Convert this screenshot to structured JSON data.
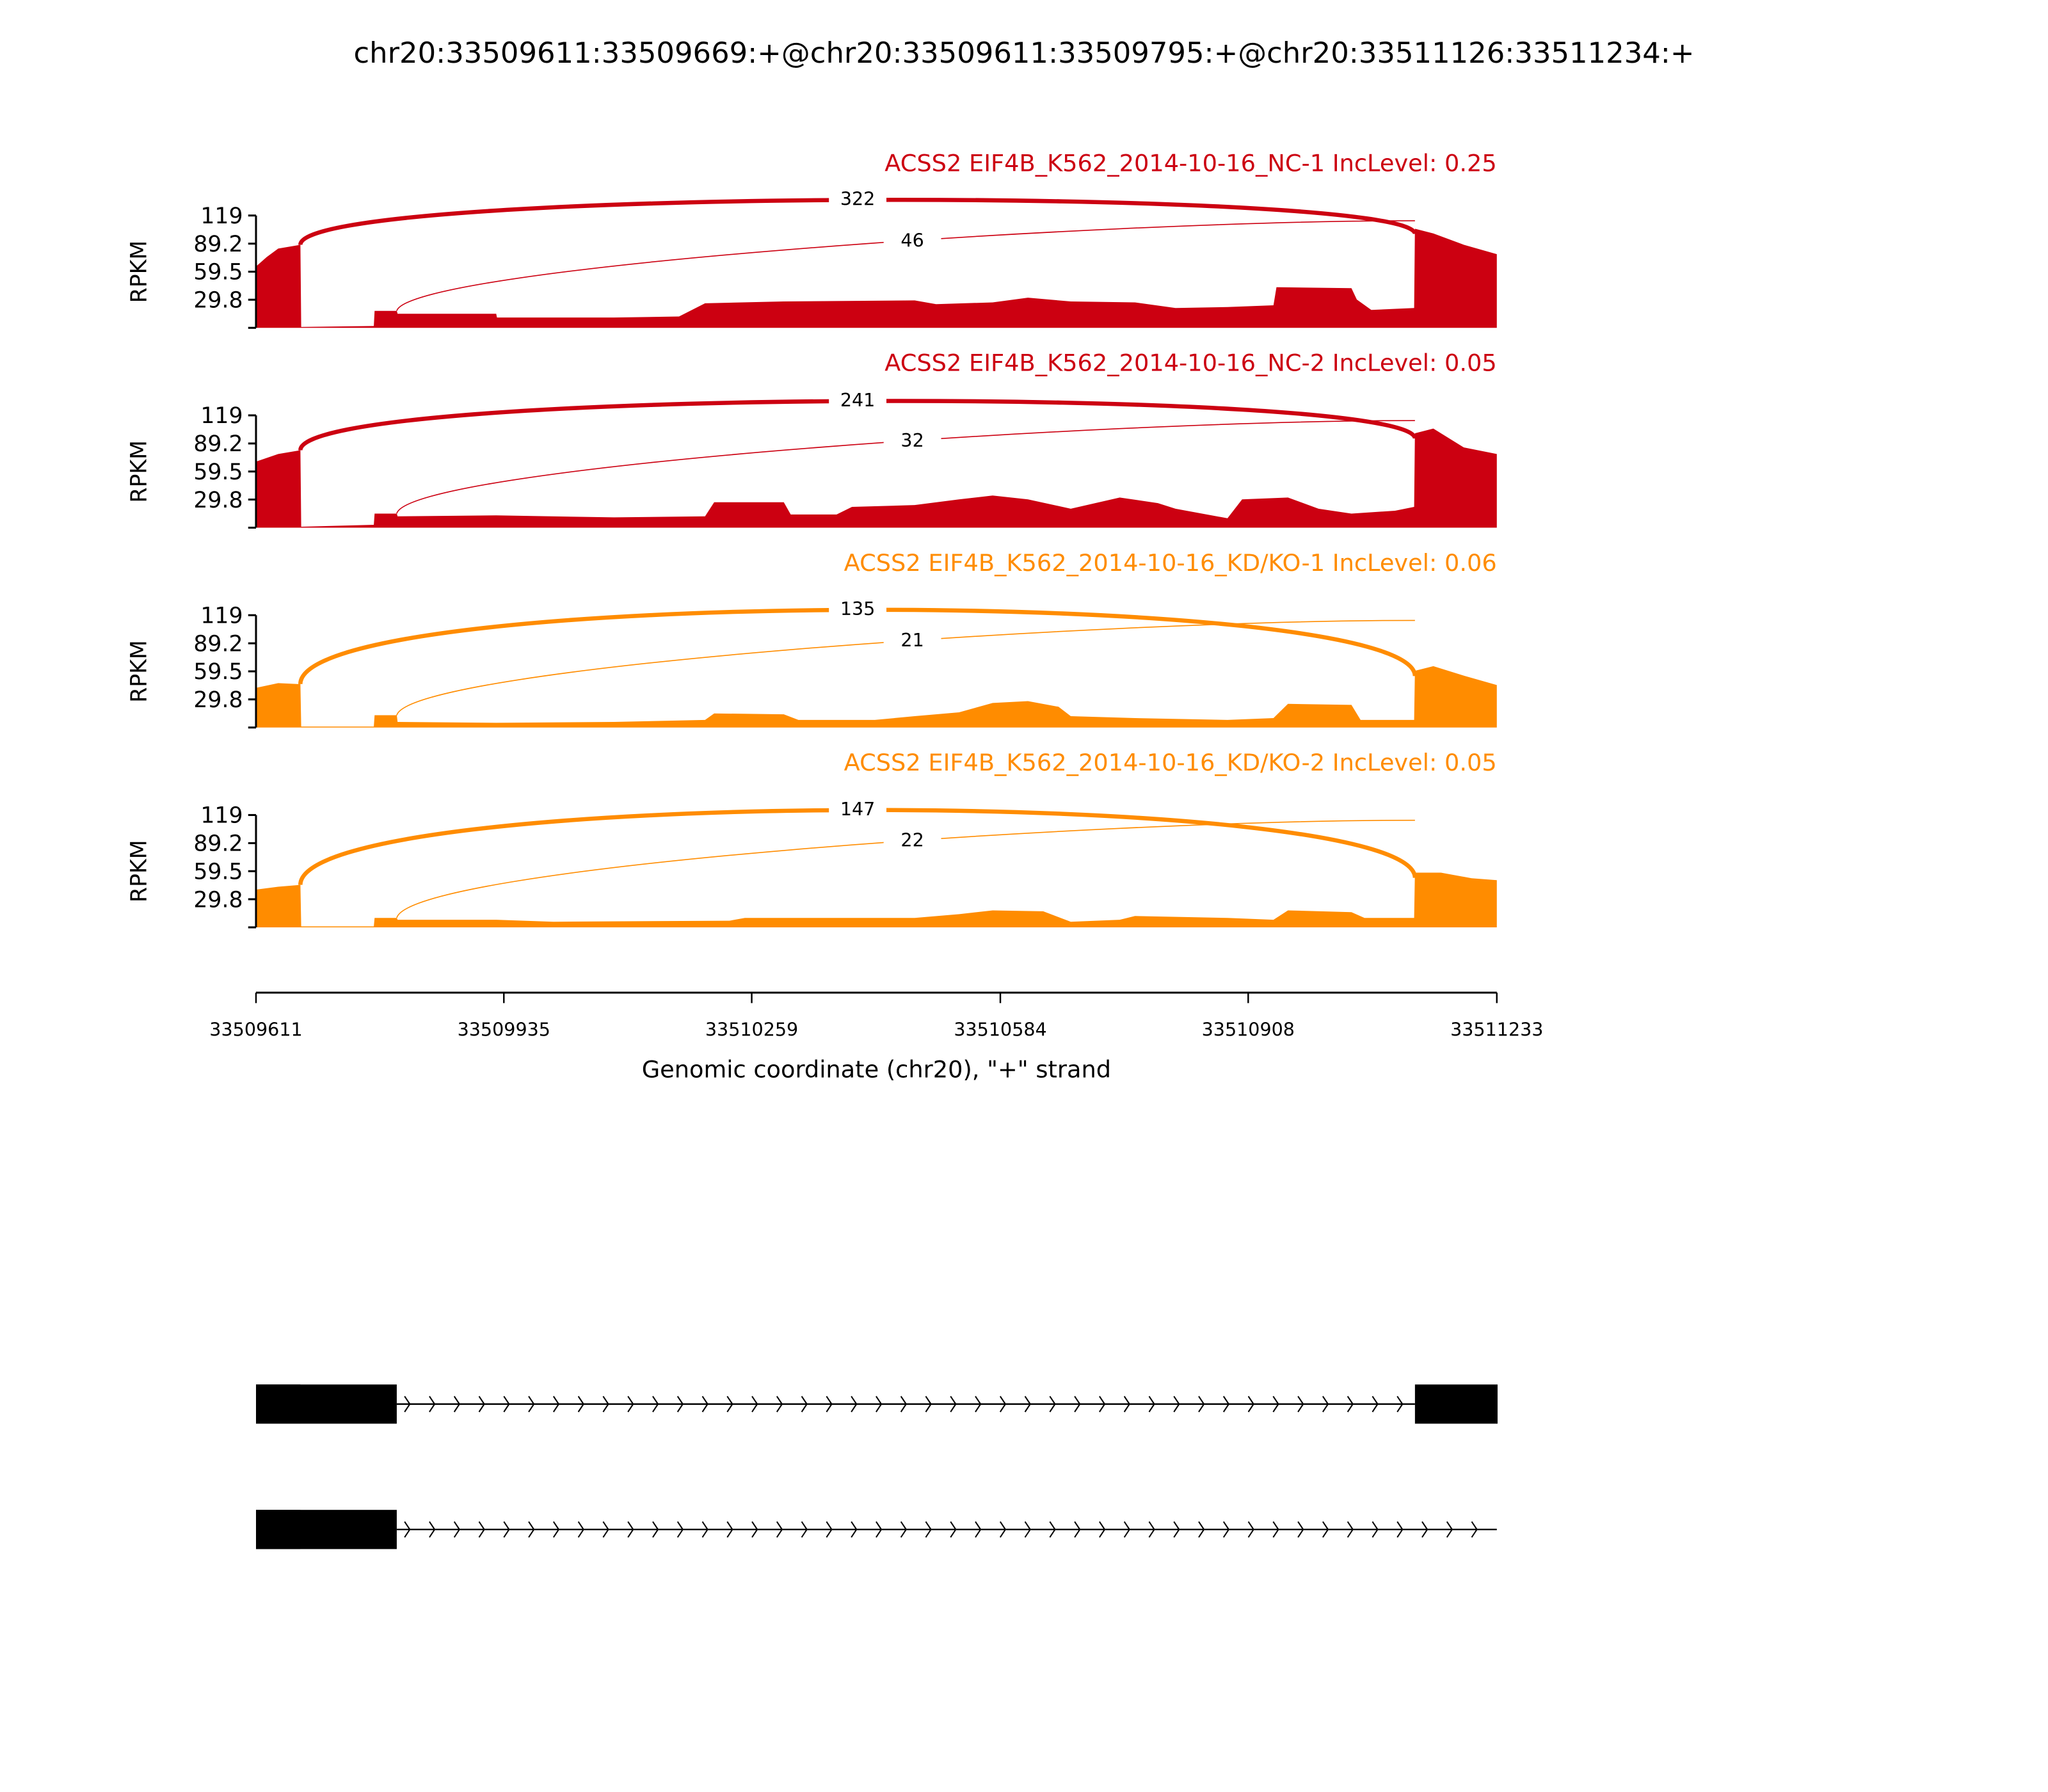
{
  "chart_data": {
    "type": "area",
    "title": "chr20:33509611:33509669:+@chr20:33509611:33509795:+@chr20:33511126:33511234:+",
    "xlabel": "Genomic coordinate (chr20), \"+\" strand",
    "ylabel": "RPKM",
    "xlim": [
      33509611,
      33511233
    ],
    "xticks": [
      "33509611",
      "33509935",
      "33510259",
      "33510584",
      "33510908",
      "33511233"
    ],
    "ylim": [
      0,
      119
    ],
    "yticks": [
      "119",
      "89.2",
      "59.5",
      "29.8"
    ],
    "yticks_values": [
      119,
      89.2,
      59.5,
      29.8
    ],
    "colors": {
      "NC": "#cc0011",
      "KD": "#ff8c00",
      "gene": "#000000"
    },
    "series": [
      {
        "name": "ACSS2 EIF4B_K562_2014-10-16_NC-1 IncLevel: 0.25",
        "color": "#cc0011",
        "coverage": [
          [
            33509611,
            65
          ],
          [
            33509625,
            75
          ],
          [
            33509640,
            84
          ],
          [
            33509669,
            88
          ],
          [
            33509670,
            1
          ],
          [
            33509765,
            2
          ],
          [
            33509766,
            18
          ],
          [
            33509795,
            18
          ],
          [
            33509796,
            15
          ],
          [
            33509925,
            15
          ],
          [
            33509926,
            11
          ],
          [
            33510079,
            11
          ],
          [
            33510164,
            12
          ],
          [
            33510198,
            26
          ],
          [
            33510301,
            28
          ],
          [
            33510472,
            29
          ],
          [
            33510500,
            25
          ],
          [
            33510574,
            27
          ],
          [
            33510620,
            32
          ],
          [
            33510676,
            28
          ],
          [
            33510760,
            27
          ],
          [
            33510813,
            21
          ],
          [
            33510881,
            22
          ],
          [
            33510941,
            24
          ],
          [
            33510945,
            43
          ],
          [
            33511043,
            42
          ],
          [
            33511050,
            30
          ],
          [
            33511069,
            19
          ],
          [
            33511125,
            21
          ],
          [
            33511126,
            105
          ],
          [
            33511150,
            100
          ],
          [
            33511190,
            88
          ],
          [
            33511233,
            78
          ]
        ],
        "junctions": [
          {
            "start": 33509669,
            "end": 33511126,
            "count": 322
          },
          {
            "start": 33509795,
            "end": 33511126,
            "count": 46
          }
        ]
      },
      {
        "name": "ACSS2 EIF4B_K562_2014-10-16_NC-2 IncLevel: 0.05",
        "color": "#cc0011",
        "coverage": [
          [
            33509611,
            70
          ],
          [
            33509640,
            78
          ],
          [
            33509669,
            82
          ],
          [
            33509670,
            1
          ],
          [
            33509765,
            3
          ],
          [
            33509766,
            15
          ],
          [
            33509795,
            15
          ],
          [
            33509796,
            12
          ],
          [
            33509925,
            13
          ],
          [
            33510079,
            11
          ],
          [
            33510198,
            12
          ],
          [
            33510210,
            27
          ],
          [
            33510301,
            27
          ],
          [
            33510310,
            14
          ],
          [
            33510370,
            14
          ],
          [
            33510390,
            22
          ],
          [
            33510472,
            24
          ],
          [
            33510530,
            30
          ],
          [
            33510574,
            34
          ],
          [
            33510620,
            30
          ],
          [
            33510676,
            20
          ],
          [
            33510740,
            32
          ],
          [
            33510790,
            26
          ],
          [
            33510813,
            20
          ],
          [
            33510881,
            10
          ],
          [
            33510900,
            30
          ],
          [
            33510960,
            32
          ],
          [
            33511000,
            20
          ],
          [
            33511043,
            15
          ],
          [
            33511100,
            18
          ],
          [
            33511125,
            22
          ],
          [
            33511126,
            100
          ],
          [
            33511150,
            105
          ],
          [
            33511190,
            85
          ],
          [
            33511233,
            78
          ]
        ],
        "junctions": [
          {
            "start": 33509669,
            "end": 33511126,
            "count": 241
          },
          {
            "start": 33509795,
            "end": 33511126,
            "count": 32
          }
        ]
      },
      {
        "name": "ACSS2 EIF4B_K562_2014-10-16_KD/KO-1 IncLevel: 0.06",
        "color": "#ff8c00",
        "coverage": [
          [
            33509611,
            42
          ],
          [
            33509640,
            47
          ],
          [
            33509669,
            46
          ],
          [
            33509670,
            1
          ],
          [
            33509765,
            1
          ],
          [
            33509766,
            13
          ],
          [
            33509795,
            13
          ],
          [
            33509796,
            6
          ],
          [
            33509925,
            5
          ],
          [
            33510079,
            6
          ],
          [
            33510198,
            8
          ],
          [
            33510210,
            15
          ],
          [
            33510301,
            14
          ],
          [
            33510320,
            8
          ],
          [
            33510420,
            8
          ],
          [
            33510472,
            12
          ],
          [
            33510530,
            16
          ],
          [
            33510574,
            26
          ],
          [
            33510620,
            28
          ],
          [
            33510660,
            22
          ],
          [
            33510676,
            12
          ],
          [
            33510760,
            10
          ],
          [
            33510881,
            8
          ],
          [
            33510941,
            10
          ],
          [
            33510960,
            25
          ],
          [
            33511043,
            24
          ],
          [
            33511055,
            8
          ],
          [
            33511125,
            8
          ],
          [
            33511126,
            60
          ],
          [
            33511150,
            65
          ],
          [
            33511190,
            55
          ],
          [
            33511233,
            45
          ]
        ],
        "junctions": [
          {
            "start": 33509669,
            "end": 33511126,
            "count": 135
          },
          {
            "start": 33509795,
            "end": 33511126,
            "count": 21
          }
        ]
      },
      {
        "name": "ACSS2 EIF4B_K562_2014-10-16_KD/KO-2 IncLevel: 0.05",
        "color": "#ff8c00",
        "coverage": [
          [
            33509611,
            40
          ],
          [
            33509640,
            43
          ],
          [
            33509669,
            45
          ],
          [
            33509670,
            1
          ],
          [
            33509765,
            1
          ],
          [
            33509766,
            10
          ],
          [
            33509795,
            10
          ],
          [
            33509796,
            8
          ],
          [
            33509925,
            8
          ],
          [
            33510000,
            6
          ],
          [
            33510230,
            7
          ],
          [
            33510250,
            10
          ],
          [
            33510472,
            10
          ],
          [
            33510530,
            14
          ],
          [
            33510574,
            18
          ],
          [
            33510640,
            17
          ],
          [
            33510676,
            6
          ],
          [
            33510740,
            8
          ],
          [
            33510760,
            12
          ],
          [
            33510881,
            10
          ],
          [
            33510941,
            8
          ],
          [
            33510960,
            18
          ],
          [
            33511043,
            16
          ],
          [
            33511060,
            10
          ],
          [
            33511125,
            10
          ],
          [
            33511126,
            58
          ],
          [
            33511160,
            58
          ],
          [
            33511200,
            52
          ],
          [
            33511233,
            50
          ]
        ],
        "junctions": [
          {
            "start": 33509669,
            "end": 33511126,
            "count": 147
          },
          {
            "start": 33509795,
            "end": 33511126,
            "count": 22
          }
        ]
      }
    ],
    "transcripts": [
      {
        "exons": [
          [
            33509611,
            33509669
          ],
          [
            33509611,
            33509795
          ],
          [
            33511126,
            33511234
          ]
        ],
        "strand": "+"
      },
      {
        "exons": [
          [
            33509611,
            33509669
          ],
          [
            33509611,
            33509795
          ]
        ],
        "strand": "+",
        "intron_end": 33511233
      }
    ]
  }
}
